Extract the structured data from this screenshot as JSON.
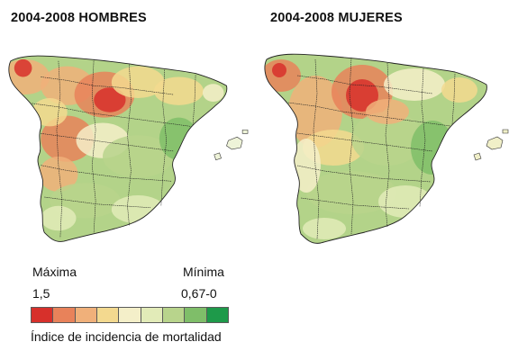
{
  "maps": [
    {
      "title": "2004-2008 HOMBRES",
      "sex": "hombres"
    },
    {
      "title": "2004-2008 MUJERES",
      "sex": "mujeres"
    }
  ],
  "legend": {
    "max_label": "Máxima",
    "min_label": "Mínima",
    "max_value": "1,5",
    "min_value": "0,67-0",
    "caption": "Índice de incidencia de mortalidad",
    "colors": [
      "#d7302b",
      "#e8825a",
      "#f0b07a",
      "#f3d98f",
      "#f4efc9",
      "#e2ebb8",
      "#b8d48c",
      "#7fbe69",
      "#1e9a4a"
    ]
  },
  "palette": {
    "base": "#b3d389",
    "border": "#222222"
  }
}
